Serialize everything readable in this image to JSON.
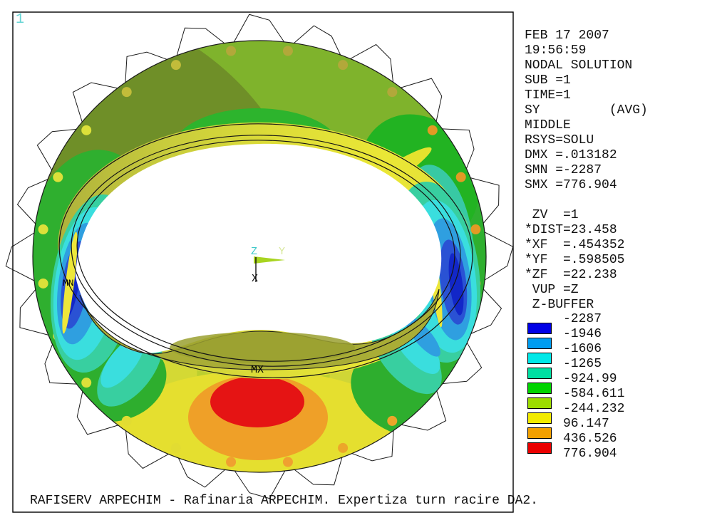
{
  "window": {
    "plot_number": "1"
  },
  "header": {
    "lines": [
      "FEB 17 2007",
      "19:56:59",
      "NODAL SOLUTION",
      "SUB =1",
      "TIME=1",
      "SY         (AVG)",
      "MIDDLE",
      "RSYS=SOLU",
      "DMX =.013182",
      "SMN =-2287",
      "SMX =776.904"
    ]
  },
  "view": {
    "lines": [
      " ZV  =1",
      "*DIST=23.458",
      "*XF  =.454352",
      "*YF  =.598505",
      "*ZF  =22.238",
      " VUP =Z",
      " Z-BUFFER"
    ]
  },
  "legend": {
    "colors": [
      "#0000E6",
      "#009CF0",
      "#00E8E8",
      "#00DFA2",
      "#00D400",
      "#9CDC00",
      "#F2EA00",
      "#F2A000",
      "#EA0000"
    ],
    "labels": [
      "-2287",
      "-1946",
      "-1606",
      "-1265",
      "-924.99",
      "-584.611",
      "-244.232",
      "96.147",
      "436.526",
      "776.904"
    ]
  },
  "annotations": {
    "mx": "MX",
    "mn": "MN"
  },
  "triad": {
    "x": "X",
    "y": "Y",
    "z": "Z",
    "z_color": "#3EC8C8",
    "y_color": "#D8E89C",
    "arrow_color": "#A8D420"
  },
  "caption": "RAFISERV ARPECHIM - Rafinaria ARPECHIM. Expertiza turn racire DA2.",
  "colors": {
    "background": "#FFFFFF",
    "border": "#000000",
    "plot_number": "#66D4D4"
  },
  "chart_data": {
    "type": "heatmap",
    "title": "NODAL SOLUTION SY (AVG) stress contour, MIDDLE layer, RSYS=SOLU",
    "legend_position": "right",
    "contour_levels": [
      -2287,
      -1946,
      -1606,
      -1265,
      -924.99,
      -584.611,
      -244.232,
      96.147,
      436.526,
      776.904
    ],
    "contour_colors": [
      "#0000E6",
      "#009CF0",
      "#00E8E8",
      "#00DFA2",
      "#00D400",
      "#9CDC00",
      "#F2EA00",
      "#F2A000",
      "#EA0000"
    ],
    "stats": {
      "SUB": 1,
      "TIME": 1,
      "DMX": 0.013182,
      "SMN": -2287,
      "SMX": 776.904
    },
    "view_params": {
      "ZV": 1,
      "DIST": 23.458,
      "XF": 0.454352,
      "YF": 0.598505,
      "ZF": 22.238,
      "VUP": "Z",
      "mode": "Z-BUFFER"
    },
    "extrema": [
      {
        "label": "MN",
        "value": -2287,
        "location": "inner rim, mid-left"
      },
      {
        "label": "MX",
        "value": 776.904,
        "location": "ring beam, bottom center"
      }
    ]
  }
}
